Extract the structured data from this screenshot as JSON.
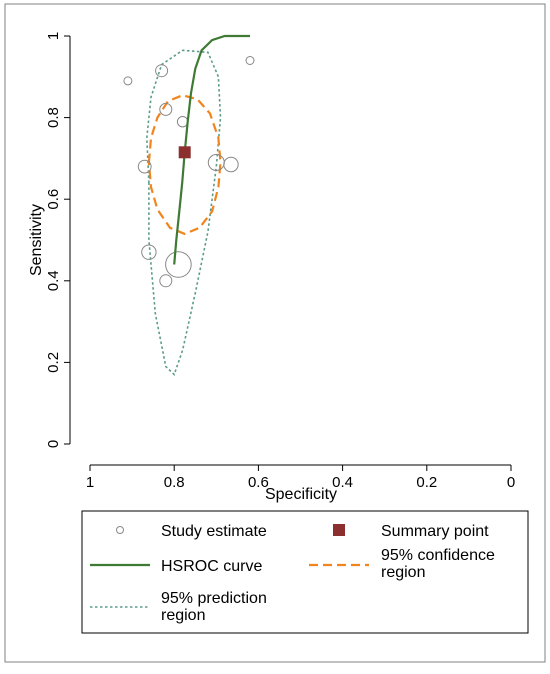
{
  "chart_data": {
    "type": "scatter",
    "xlabel": "Specificity",
    "ylabel": "Sensitivity",
    "x_reversed": true,
    "xlim": [
      1,
      0
    ],
    "ylim": [
      0,
      1
    ],
    "x_ticks": [
      {
        "value": 1,
        "label": "1"
      },
      {
        "value": 0.8,
        "label": "0.8"
      },
      {
        "value": 0.6,
        "label": "0.6"
      },
      {
        "value": 0.4,
        "label": "0.4"
      },
      {
        "value": 0.2,
        "label": "0.2"
      },
      {
        "value": 0,
        "label": "0"
      }
    ],
    "y_ticks": [
      {
        "value": 0,
        "label": "0"
      },
      {
        "value": 0.2,
        "label": "0.2"
      },
      {
        "value": 0.4,
        "label": "0.4"
      },
      {
        "value": 0.6,
        "label": "0.6"
      },
      {
        "value": 0.8,
        "label": "0.8"
      },
      {
        "value": 1,
        "label": "1"
      }
    ],
    "grid": false,
    "legend_position": "bottom",
    "colors": {
      "study": "#888888",
      "summary": "#8b2f2f",
      "hsroc": "#3f7a35",
      "confidence": "#f0851e",
      "prediction": "#5b9b8a",
      "axis": "#000000",
      "border": "#808080"
    },
    "studies": [
      {
        "spec": 0.91,
        "sens": 0.89,
        "weight": 1.0
      },
      {
        "spec": 0.83,
        "sens": 0.915,
        "weight": 1.5
      },
      {
        "spec": 0.62,
        "sens": 0.94,
        "weight": 1.0
      },
      {
        "spec": 0.82,
        "sens": 0.82,
        "weight": 1.5
      },
      {
        "spec": 0.78,
        "sens": 0.79,
        "weight": 1.3
      },
      {
        "spec": 0.87,
        "sens": 0.68,
        "weight": 1.6
      },
      {
        "spec": 0.7,
        "sens": 0.69,
        "weight": 2.0
      },
      {
        "spec": 0.665,
        "sens": 0.685,
        "weight": 1.8
      },
      {
        "spec": 0.86,
        "sens": 0.47,
        "weight": 1.8
      },
      {
        "spec": 0.79,
        "sens": 0.44,
        "weight": 3.2
      },
      {
        "spec": 0.82,
        "sens": 0.4,
        "weight": 1.5
      }
    ],
    "summary_point": {
      "spec": 0.775,
      "sens": 0.715
    },
    "hsroc_curve": [
      {
        "spec": 0.8,
        "sens": 0.44
      },
      {
        "spec": 0.795,
        "sens": 0.5
      },
      {
        "spec": 0.788,
        "sens": 0.57
      },
      {
        "spec": 0.781,
        "sens": 0.64
      },
      {
        "spec": 0.775,
        "sens": 0.715
      },
      {
        "spec": 0.768,
        "sens": 0.79
      },
      {
        "spec": 0.76,
        "sens": 0.86
      },
      {
        "spec": 0.75,
        "sens": 0.92
      },
      {
        "spec": 0.735,
        "sens": 0.965
      },
      {
        "spec": 0.71,
        "sens": 0.99
      },
      {
        "spec": 0.68,
        "sens": 1.0
      },
      {
        "spec": 0.62,
        "sens": 1.0
      }
    ],
    "confidence_region": [
      {
        "spec": 0.86,
        "sens": 0.69
      },
      {
        "spec": 0.855,
        "sens": 0.75
      },
      {
        "spec": 0.84,
        "sens": 0.8
      },
      {
        "spec": 0.815,
        "sens": 0.84
      },
      {
        "spec": 0.78,
        "sens": 0.855
      },
      {
        "spec": 0.745,
        "sens": 0.845
      },
      {
        "spec": 0.715,
        "sens": 0.81
      },
      {
        "spec": 0.695,
        "sens": 0.75
      },
      {
        "spec": 0.69,
        "sens": 0.69
      },
      {
        "spec": 0.695,
        "sens": 0.63
      },
      {
        "spec": 0.71,
        "sens": 0.57
      },
      {
        "spec": 0.74,
        "sens": 0.53
      },
      {
        "spec": 0.775,
        "sens": 0.515
      },
      {
        "spec": 0.81,
        "sens": 0.53
      },
      {
        "spec": 0.84,
        "sens": 0.575
      },
      {
        "spec": 0.855,
        "sens": 0.63
      },
      {
        "spec": 0.86,
        "sens": 0.69
      }
    ],
    "prediction_region": [
      {
        "spec": 0.86,
        "sens": 0.64
      },
      {
        "spec": 0.865,
        "sens": 0.75
      },
      {
        "spec": 0.855,
        "sens": 0.85
      },
      {
        "spec": 0.83,
        "sens": 0.93
      },
      {
        "spec": 0.78,
        "sens": 0.965
      },
      {
        "spec": 0.72,
        "sens": 0.96
      },
      {
        "spec": 0.695,
        "sens": 0.9
      },
      {
        "spec": 0.69,
        "sens": 0.8
      },
      {
        "spec": 0.7,
        "sens": 0.68
      },
      {
        "spec": 0.72,
        "sens": 0.52
      },
      {
        "spec": 0.75,
        "sens": 0.37
      },
      {
        "spec": 0.78,
        "sens": 0.23
      },
      {
        "spec": 0.8,
        "sens": 0.17
      },
      {
        "spec": 0.82,
        "sens": 0.19
      },
      {
        "spec": 0.845,
        "sens": 0.32
      },
      {
        "spec": 0.86,
        "sens": 0.5
      },
      {
        "spec": 0.86,
        "sens": 0.64
      }
    ],
    "legend": [
      {
        "key": "study",
        "label_lines": [
          "Study estimate"
        ]
      },
      {
        "key": "summary",
        "label_lines": [
          "Summary point"
        ]
      },
      {
        "key": "hsroc",
        "label_lines": [
          "HSROC curve"
        ]
      },
      {
        "key": "confidence",
        "label_lines": [
          "95% confidence",
          "region"
        ]
      },
      {
        "key": "prediction",
        "label_lines": [
          "95% prediction",
          "region"
        ]
      }
    ]
  }
}
